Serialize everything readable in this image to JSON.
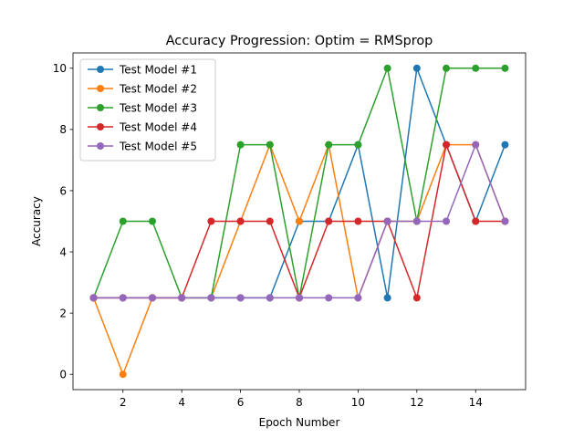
{
  "chart_data": {
    "type": "line",
    "title": "Accuracy Progression: Optim = RMSprop",
    "xlabel": "Epoch Number",
    "ylabel": "Accuracy",
    "xlim": [
      0.3,
      15.7
    ],
    "ylim": [
      -0.5,
      10.5
    ],
    "xticks": [
      2,
      4,
      6,
      8,
      10,
      12,
      14
    ],
    "yticks": [
      0,
      2,
      4,
      6,
      8,
      10
    ],
    "grid": false,
    "legend_position": "top-left",
    "x": [
      1,
      2,
      3,
      4,
      5,
      6,
      7,
      8,
      9,
      10,
      11,
      12,
      13,
      14,
      15
    ],
    "series": [
      {
        "name": "Test Model #1",
        "color": "#1f77b4",
        "values": [
          2.5,
          2.5,
          2.5,
          2.5,
          2.5,
          2.5,
          2.5,
          5,
          5,
          7.5,
          2.5,
          10,
          7.5,
          5,
          7.5
        ]
      },
      {
        "name": "Test Model #2",
        "color": "#ff7f0e",
        "values": [
          2.5,
          0,
          2.5,
          2.5,
          2.5,
          5,
          7.5,
          5,
          7.5,
          2.5,
          5,
          5,
          7.5,
          7.5,
          5
        ]
      },
      {
        "name": "Test Model #3",
        "color": "#2ca02c",
        "values": [
          2.5,
          5,
          5,
          2.5,
          2.5,
          7.5,
          7.5,
          2.5,
          7.5,
          7.5,
          10,
          5,
          10,
          10,
          10
        ]
      },
      {
        "name": "Test Model #4",
        "color": "#d62728",
        "values": [
          2.5,
          2.5,
          2.5,
          2.5,
          5,
          5,
          5,
          2.5,
          5,
          5,
          5,
          2.5,
          7.5,
          5,
          5
        ]
      },
      {
        "name": "Test Model #5",
        "color": "#9467bd",
        "values": [
          2.5,
          2.5,
          2.5,
          2.5,
          2.5,
          2.5,
          2.5,
          2.5,
          2.5,
          2.5,
          5,
          5,
          5,
          7.5,
          5
        ]
      }
    ]
  }
}
